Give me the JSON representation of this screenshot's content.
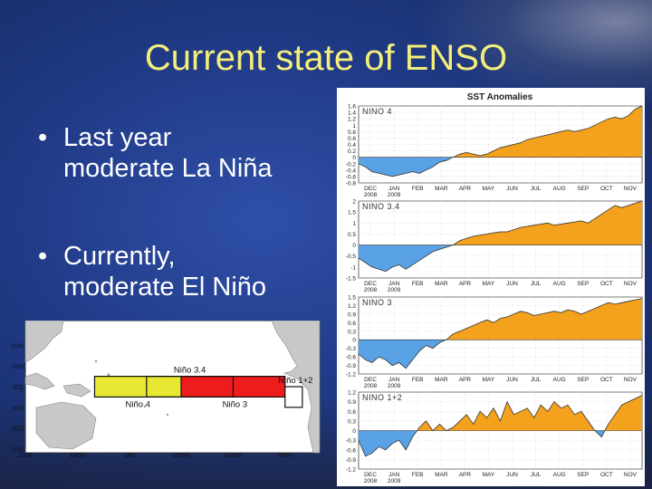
{
  "slide": {
    "title": "Current state of ENSO",
    "bullets": [
      {
        "line1": "Last year",
        "line2": "moderate La Niña"
      },
      {
        "line1": "Currently,",
        "line2": "moderate El Niño"
      }
    ]
  },
  "map": {
    "lat_labels": [
      "20N",
      "10N",
      "EQ",
      "10S",
      "20S",
      "30S"
    ],
    "lon_labels": [
      "120E",
      "150E",
      "180",
      "150W",
      "120W",
      "90W"
    ],
    "regions": [
      {
        "name": "Niño 4",
        "color": "#e8e832",
        "lon": [
          160,
          210
        ],
        "lat": [
          -5,
          5
        ]
      },
      {
        "name": "Niño 3.4",
        "color": "#ee1c1c",
        "lon": [
          190,
          240
        ],
        "lat": [
          -5,
          5
        ]
      },
      {
        "name": "Niño 3",
        "color": "#ee1c1c",
        "lon": [
          210,
          270
        ],
        "lat": [
          -5,
          5
        ]
      },
      {
        "name": "Niño 1+2",
        "color": "#ffffff",
        "lon": [
          270,
          280
        ],
        "lat": [
          -10,
          0
        ]
      }
    ]
  },
  "chart_data": {
    "type": "area",
    "title": "SST Anomalies",
    "positive_color": "#f4a11d",
    "negative_color": "#5aa2e6",
    "x_tick_labels": [
      {
        "month": "DEC",
        "year": "2008"
      },
      {
        "month": "JAN",
        "year": "2009"
      },
      {
        "month": "FEB",
        "year": ""
      },
      {
        "month": "MAR",
        "year": ""
      },
      {
        "month": "APR",
        "year": ""
      },
      {
        "month": "MAY",
        "year": ""
      },
      {
        "month": "JUN",
        "year": ""
      },
      {
        "month": "JUL",
        "year": ""
      },
      {
        "month": "AUG",
        "year": ""
      },
      {
        "month": "SEP",
        "year": ""
      },
      {
        "month": "OCT",
        "year": ""
      },
      {
        "month": "NOV",
        "year": ""
      }
    ],
    "panels": [
      {
        "label": "NINO 4",
        "ylim": [
          -0.8,
          1.6
        ],
        "yticks": [
          "1.6",
          "1.4",
          "1.2",
          "1",
          "0.8",
          "0.6",
          "0.4",
          "0.2",
          "0",
          "-0.2",
          "-0.4",
          "-0.6",
          "-0.8"
        ],
        "ytick_values": [
          1.6,
          1.4,
          1.2,
          1,
          0.8,
          0.6,
          0.4,
          0.2,
          0,
          -0.2,
          -0.4,
          -0.6,
          -0.8
        ],
        "values": [
          -0.2,
          -0.3,
          -0.45,
          -0.5,
          -0.55,
          -0.6,
          -0.55,
          -0.5,
          -0.45,
          -0.5,
          -0.4,
          -0.3,
          -0.15,
          -0.1,
          0.0,
          0.1,
          0.15,
          0.1,
          0.05,
          0.1,
          0.2,
          0.3,
          0.35,
          0.4,
          0.45,
          0.55,
          0.6,
          0.65,
          0.7,
          0.75,
          0.8,
          0.85,
          0.8,
          0.85,
          0.9,
          1.0,
          1.1,
          1.2,
          1.25,
          1.2,
          1.3,
          1.5,
          1.6
        ]
      },
      {
        "label": "NINO 3.4",
        "ylim": [
          -1.5,
          2
        ],
        "yticks": [
          "2",
          "1.5",
          "1",
          "0.5",
          "0",
          "-0.5",
          "-1",
          "-1.5"
        ],
        "ytick_values": [
          2,
          1.5,
          1,
          0.5,
          0,
          -0.5,
          -1,
          -1.5
        ],
        "values": [
          -0.6,
          -0.8,
          -1.0,
          -1.1,
          -1.2,
          -1.0,
          -0.9,
          -1.1,
          -0.9,
          -0.7,
          -0.5,
          -0.3,
          -0.2,
          -0.1,
          0.0,
          0.2,
          0.3,
          0.4,
          0.45,
          0.5,
          0.55,
          0.6,
          0.6,
          0.7,
          0.8,
          0.85,
          0.9,
          0.95,
          1.0,
          0.9,
          0.95,
          1.0,
          1.05,
          1.1,
          1.0,
          1.2,
          1.4,
          1.6,
          1.8,
          1.7,
          1.8,
          1.9,
          2.0
        ]
      },
      {
        "label": "NINO 3",
        "ylim": [
          -1.2,
          1.5
        ],
        "yticks": [
          "1.5",
          "1.2",
          "0.9",
          "0.6",
          "0.3",
          "0",
          "-0.3",
          "-0.6",
          "-0.9",
          "-1.2"
        ],
        "ytick_values": [
          1.5,
          1.2,
          0.9,
          0.6,
          0.3,
          0,
          -0.3,
          -0.6,
          -0.9,
          -1.2
        ],
        "values": [
          -0.5,
          -0.7,
          -0.8,
          -0.6,
          -0.7,
          -0.9,
          -0.8,
          -1.0,
          -0.7,
          -0.4,
          -0.2,
          -0.3,
          -0.1,
          0.0,
          0.2,
          0.3,
          0.4,
          0.5,
          0.6,
          0.7,
          0.6,
          0.75,
          0.8,
          0.9,
          1.0,
          0.95,
          0.85,
          0.9,
          0.95,
          1.0,
          0.95,
          1.05,
          1.0,
          0.9,
          1.0,
          1.1,
          1.2,
          1.3,
          1.25,
          1.3,
          1.35,
          1.4,
          1.45
        ]
      },
      {
        "label": "NINO 1+2",
        "ylim": [
          -1.2,
          1.2
        ],
        "yticks": [
          "1.2",
          "0.9",
          "0.6",
          "0.3",
          "0",
          "-0.3",
          "-0.6",
          "-0.9",
          "-1.2"
        ],
        "ytick_values": [
          1.2,
          0.9,
          0.6,
          0.3,
          0,
          -0.3,
          -0.6,
          -0.9,
          -1.2
        ],
        "values": [
          -0.3,
          -0.8,
          -0.7,
          -0.5,
          -0.6,
          -0.4,
          -0.3,
          -0.6,
          -0.2,
          0.1,
          0.3,
          0.0,
          0.2,
          0.0,
          0.1,
          0.3,
          0.5,
          0.2,
          0.6,
          0.4,
          0.7,
          0.3,
          0.9,
          0.5,
          0.6,
          0.7,
          0.4,
          0.8,
          0.6,
          0.9,
          0.7,
          0.8,
          0.5,
          0.6,
          0.3,
          0.0,
          -0.2,
          0.2,
          0.5,
          0.8,
          0.9,
          1.0,
          1.1
        ]
      }
    ]
  }
}
